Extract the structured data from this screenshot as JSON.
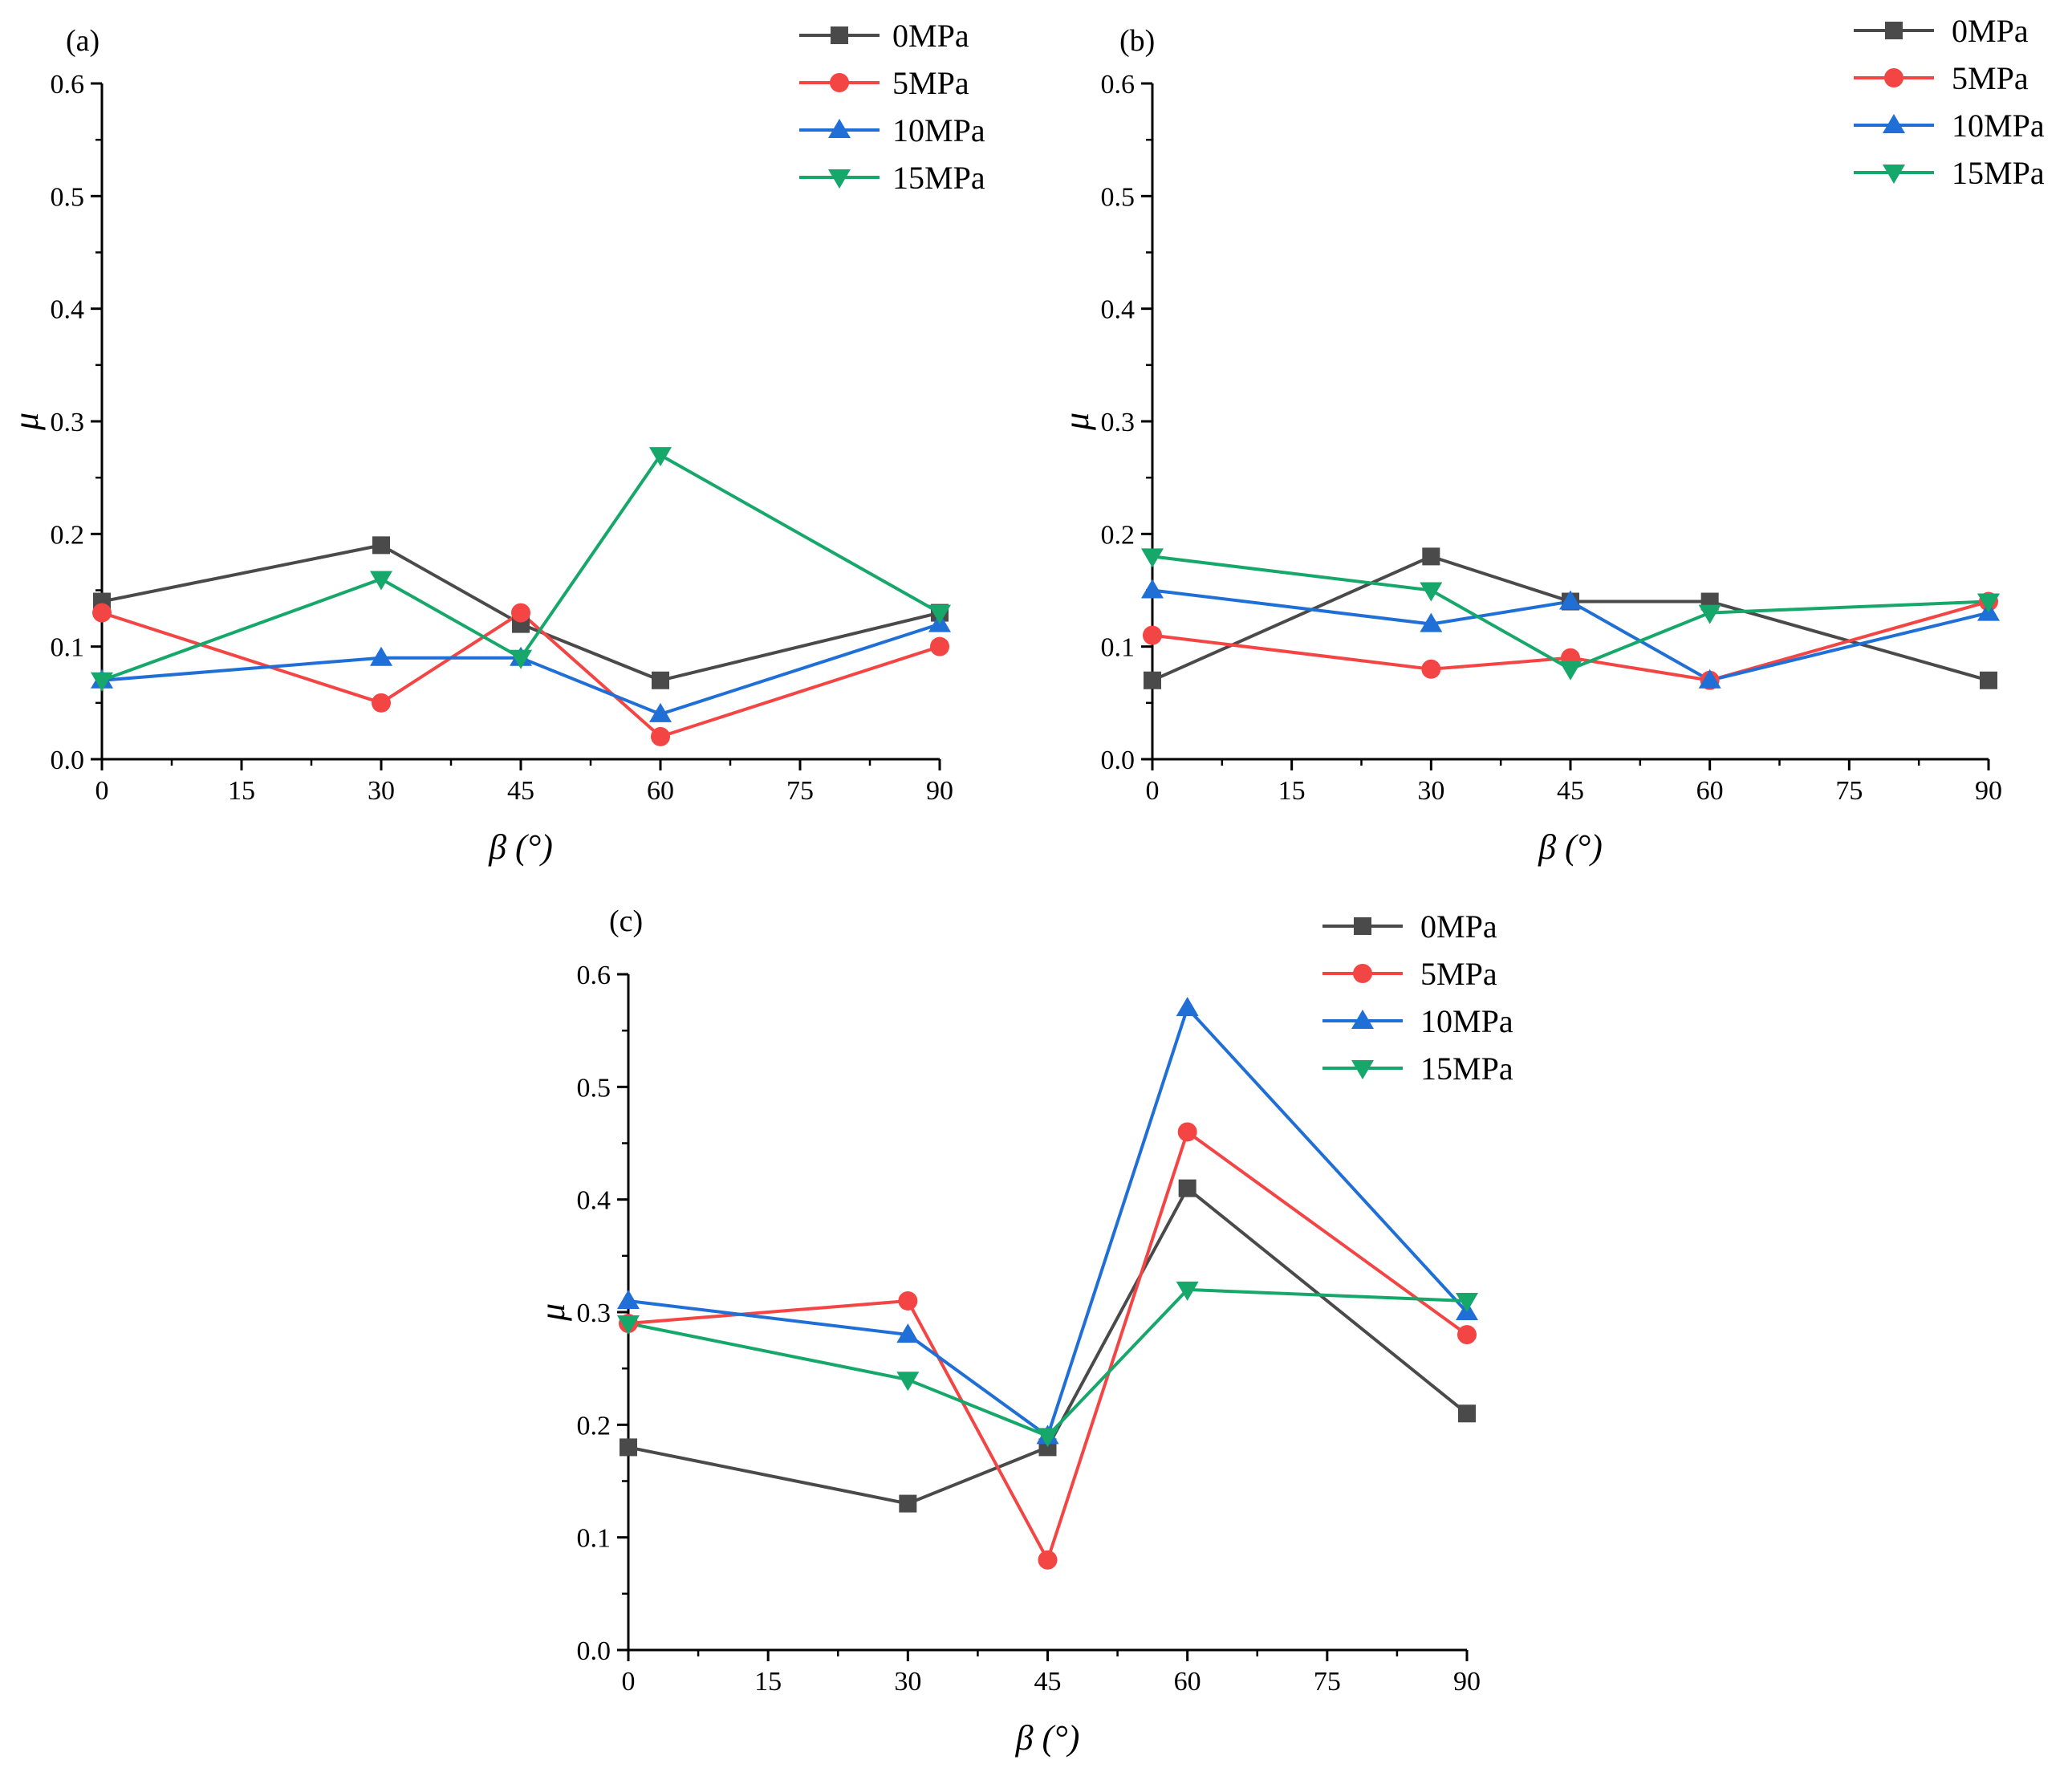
{
  "chart_data": [
    {
      "type": "line",
      "panel_label": "(a)",
      "xlabel": "β (°)",
      "ylabel": "μ",
      "xlim": [
        0,
        90
      ],
      "ylim": [
        0.0,
        0.6
      ],
      "x": [
        0,
        30,
        45,
        60,
        90
      ],
      "x_ticks": [
        "0",
        "15",
        "30",
        "45",
        "60",
        "75",
        "90"
      ],
      "y_ticks": [
        "0.0",
        "0.1",
        "0.2",
        "0.3",
        "0.4",
        "0.5",
        "0.6"
      ],
      "legend_position": "top-right",
      "series": [
        {
          "name": "0MPa",
          "values": [
            0.14,
            0.19,
            0.12,
            0.07,
            0.13
          ]
        },
        {
          "name": "5MPa",
          "values": [
            0.13,
            0.05,
            0.13,
            0.02,
            0.1
          ]
        },
        {
          "name": "10MPa",
          "values": [
            0.07,
            0.09,
            0.09,
            0.04,
            0.12
          ]
        },
        {
          "name": "15MPa",
          "values": [
            0.07,
            0.16,
            0.09,
            0.27,
            0.13
          ]
        }
      ]
    },
    {
      "type": "line",
      "panel_label": "(b)",
      "xlabel": "β (°)",
      "ylabel": "μ",
      "xlim": [
        0,
        90
      ],
      "ylim": [
        0.0,
        0.6
      ],
      "x": [
        0,
        30,
        45,
        60,
        90
      ],
      "x_ticks": [
        "0",
        "15",
        "30",
        "45",
        "60",
        "75",
        "90"
      ],
      "y_ticks": [
        "0.0",
        "0.1",
        "0.2",
        "0.3",
        "0.4",
        "0.5",
        "0.6"
      ],
      "legend_position": "top-right",
      "series": [
        {
          "name": "0MPa",
          "values": [
            0.07,
            0.18,
            0.14,
            0.14,
            0.07
          ]
        },
        {
          "name": "5MPa",
          "values": [
            0.11,
            0.08,
            0.09,
            0.07,
            0.14
          ]
        },
        {
          "name": "10MPa",
          "values": [
            0.15,
            0.12,
            0.14,
            0.07,
            0.13
          ]
        },
        {
          "name": "15MPa",
          "values": [
            0.18,
            0.15,
            0.08,
            0.13,
            0.14
          ]
        }
      ]
    },
    {
      "type": "line",
      "panel_label": "(c)",
      "xlabel": "β (°)",
      "ylabel": "μ",
      "xlim": [
        0,
        90
      ],
      "ylim": [
        0.0,
        0.6
      ],
      "x": [
        0,
        30,
        45,
        60,
        90
      ],
      "x_ticks": [
        "0",
        "15",
        "30",
        "45",
        "60",
        "75",
        "90"
      ],
      "y_ticks": [
        "0.0",
        "0.1",
        "0.2",
        "0.3",
        "0.4",
        "0.5",
        "0.6"
      ],
      "legend_position": "top-right",
      "series": [
        {
          "name": "0MPa",
          "values": [
            0.18,
            0.13,
            0.18,
            0.41,
            0.21
          ]
        },
        {
          "name": "5MPa",
          "values": [
            0.29,
            0.31,
            0.08,
            0.46,
            0.28
          ]
        },
        {
          "name": "10MPa",
          "values": [
            0.31,
            0.28,
            0.19,
            0.57,
            0.3
          ]
        },
        {
          "name": "15MPa",
          "values": [
            0.29,
            0.24,
            0.19,
            0.32,
            0.31
          ]
        }
      ]
    }
  ],
  "series_style": [
    {
      "color": "#4a4a4a",
      "marker": "square"
    },
    {
      "color": "#f44545",
      "marker": "circle"
    },
    {
      "color": "#1f6fd6",
      "marker": "triangle-up"
    },
    {
      "color": "#16a76a",
      "marker": "triangle-down"
    }
  ]
}
